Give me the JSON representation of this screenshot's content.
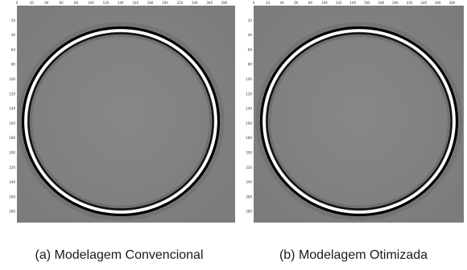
{
  "panels": [
    {
      "caption": "(a) Modelagem Convencional",
      "x_ticks": [
        "0",
        "20",
        "40",
        "60",
        "80",
        "100",
        "120",
        "140",
        "160",
        "180",
        "200",
        "220",
        "240",
        "260",
        "280"
      ],
      "y_ticks": [
        "0",
        "20",
        "40",
        "60",
        "80",
        "100",
        "120",
        "140",
        "160",
        "180",
        "200",
        "220",
        "240",
        "260",
        "280"
      ]
    },
    {
      "caption": "(b) Modelagem Otimizada",
      "x_ticks": [
        "0",
        "20",
        "40",
        "60",
        "80",
        "100",
        "120",
        "140",
        "160",
        "180",
        "200",
        "220",
        "240",
        "260",
        "280"
      ],
      "y_ticks": [
        "0",
        "20",
        "40",
        "60",
        "80",
        "100",
        "120",
        "140",
        "160",
        "180",
        "200",
        "220",
        "240",
        "260",
        "280"
      ]
    }
  ],
  "colors": {
    "background_field": "#7f7f7f",
    "wavefront_bright": "#ffffff",
    "wavefront_dark": "#000000"
  }
}
